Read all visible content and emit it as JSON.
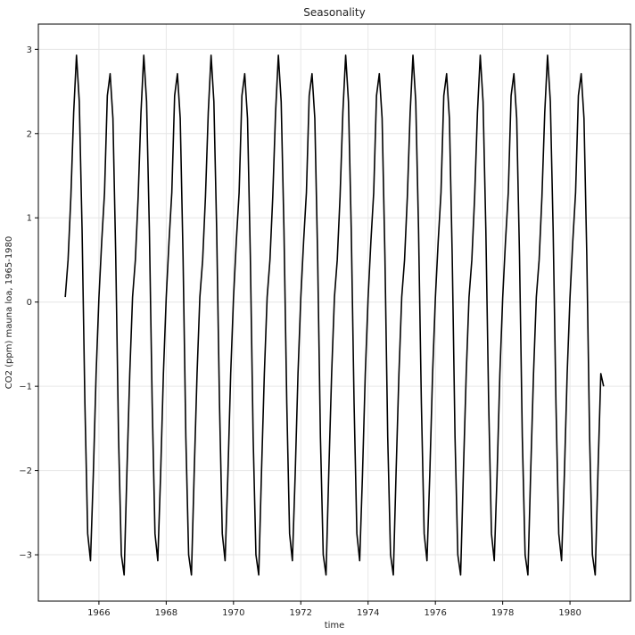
{
  "chart_data": {
    "type": "line",
    "title": "Seasonality",
    "xlabel": "time",
    "ylabel": "CO2 (ppm) mauna loa, 1965-1980",
    "xlim": [
      1964.2,
      1981.8
    ],
    "ylim": [
      -3.55,
      3.3
    ],
    "x_ticks": [
      1966,
      1968,
      1970,
      1972,
      1974,
      1976,
      1978,
      1980
    ],
    "x_tick_labels": [
      "1966",
      "1968",
      "1970",
      "1972",
      "1974",
      "1976",
      "1978",
      "1980"
    ],
    "y_ticks": [
      -3,
      -2,
      -1,
      0,
      1,
      2,
      3
    ],
    "y_tick_labels": [
      "−3",
      "−2",
      "−1",
      "0",
      "1",
      "2",
      "3"
    ],
    "grid": true,
    "line_color": "#000000",
    "x_start": 1965.0,
    "x_step": 0.0833333,
    "seasonal_pattern": [
      0.06,
      0.5,
      1.25,
      2.25,
      2.93,
      2.38,
      0.85,
      -1.2,
      -2.75,
      -3.07,
      -2.05,
      -0.85,
      0.05,
      0.72,
      1.3,
      2.45,
      2.71,
      2.18,
      0.55,
      -1.6,
      -3.0,
      -3.24,
      -2.0,
      -0.85
    ],
    "series": [
      {
        "values": [
          0.06,
          0.5,
          1.25,
          2.25,
          2.93,
          2.38,
          0.85,
          -1.2,
          -2.75,
          -3.07,
          -2.05,
          -0.85,
          0.05,
          0.72,
          1.3,
          2.45,
          2.71,
          2.18,
          0.55,
          -1.6,
          -3.0,
          -3.24,
          -2.0,
          -0.85,
          0.06,
          0.5,
          1.25,
          2.25,
          2.93,
          2.38,
          0.85,
          -1.2,
          -2.75,
          -3.07,
          -2.05,
          -0.85,
          0.05,
          0.72,
          1.3,
          2.45,
          2.71,
          2.18,
          0.55,
          -1.6,
          -3.0,
          -3.24,
          -2.0,
          -0.85,
          0.06,
          0.5,
          1.25,
          2.25,
          2.93,
          2.38,
          0.85,
          -1.2,
          -2.75,
          -3.07,
          -2.05,
          -0.85,
          0.05,
          0.72,
          1.3,
          2.45,
          2.71,
          2.18,
          0.55,
          -1.6,
          -3.0,
          -3.24,
          -2.0,
          -0.85,
          0.06,
          0.5,
          1.25,
          2.25,
          2.93,
          2.38,
          0.85,
          -1.2,
          -2.75,
          -3.07,
          -2.05,
          -0.85,
          0.05,
          0.72,
          1.3,
          2.45,
          2.71,
          2.18,
          0.55,
          -1.6,
          -3.0,
          -3.24,
          -2.0,
          -0.85,
          0.06,
          0.5,
          1.25,
          2.25,
          2.93,
          2.38,
          0.85,
          -1.2,
          -2.75,
          -3.07,
          -2.05,
          -0.85,
          0.05,
          0.72,
          1.3,
          2.45,
          2.71,
          2.18,
          0.55,
          -1.6,
          -3.0,
          -3.24,
          -2.0,
          -0.85,
          0.06,
          0.5,
          1.25,
          2.25,
          2.93,
          2.38,
          0.85,
          -1.2,
          -2.75,
          -3.07,
          -2.05,
          -0.85,
          0.05,
          0.72,
          1.3,
          2.45,
          2.71,
          2.18,
          0.55,
          -1.6,
          -3.0,
          -3.24,
          -2.0,
          -0.85,
          0.06,
          0.5,
          1.25,
          2.25,
          2.93,
          2.38,
          0.85,
          -1.2,
          -2.75,
          -3.07,
          -2.05,
          -0.85,
          0.05,
          0.72,
          1.3,
          2.45,
          2.71,
          2.18,
          0.55,
          -1.6,
          -3.0,
          -3.24,
          -2.0,
          -0.85,
          0.06,
          0.5,
          1.25,
          2.25,
          2.93,
          2.38,
          0.85,
          -1.2,
          -2.75,
          -3.07,
          -2.05,
          -0.85,
          0.05,
          0.72,
          1.3,
          2.45,
          2.71,
          2.18,
          0.55,
          -1.6,
          -3.0,
          -3.24,
          -2.0,
          -0.85,
          -1.0
        ]
      }
    ]
  }
}
